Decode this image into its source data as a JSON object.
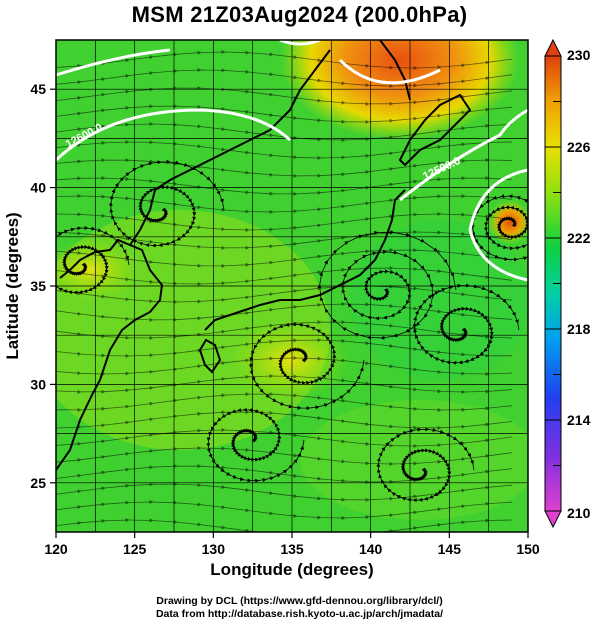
{
  "title": "MSM 21Z03Aug2024 (200.0hPa)",
  "x_axis": {
    "label": "Longitude (degrees)",
    "range": [
      120,
      150
    ],
    "ticks": [
      "120",
      "125",
      "130",
      "135",
      "140",
      "145",
      "150"
    ]
  },
  "y_axis": {
    "label": "Latitude  (degrees)",
    "range": [
      22.5,
      47.5
    ],
    "ticks": [
      "25",
      "30",
      "35",
      "40",
      "45"
    ]
  },
  "colorbar": {
    "range": [
      210,
      230
    ],
    "labels": [
      "230",
      "226",
      "222",
      "218",
      "214",
      "210"
    ],
    "colors": [
      "#e060d0",
      "#4040e0",
      "#00c0e0",
      "#00d040",
      "#80e000",
      "#e8e000",
      "#f0a000",
      "#e04000"
    ]
  },
  "contour_labels": [
    "12600.0",
    "12500.0"
  ],
  "footer": {
    "line1": "Drawing by DCL (https://www.gfd-dennou.org/library/dcl/)",
    "line2": "Data from http://database.rish.kyoto-u.ac.jp/arch/jmadata/"
  }
}
